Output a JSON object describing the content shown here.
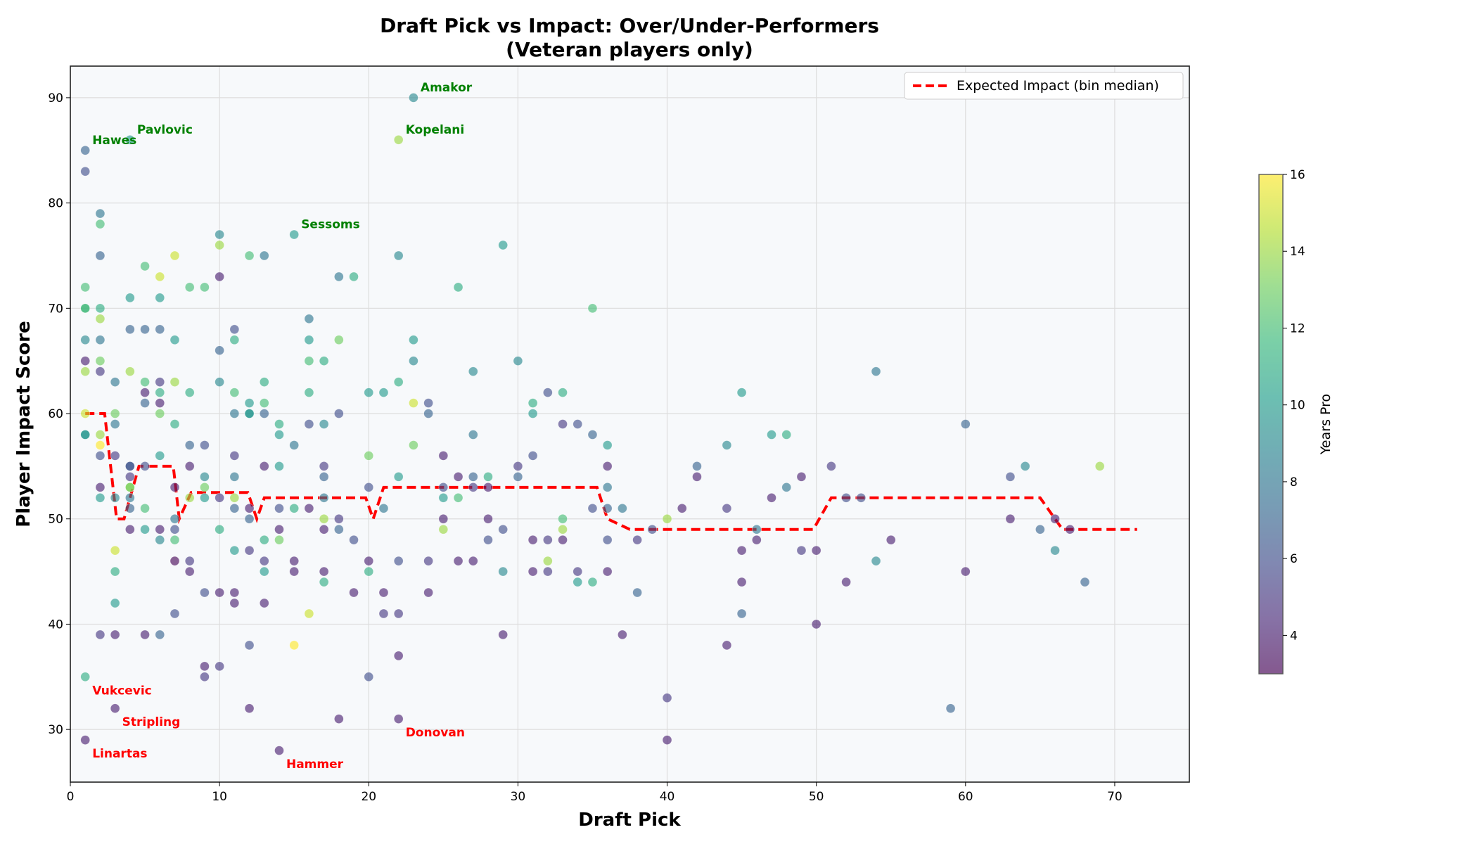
{
  "chart_data": {
    "type": "scatter",
    "title": "Draft Pick vs Impact: Over/Under-Performers",
    "subtitle": "(Veteran players only)",
    "xlabel": "Draft Pick",
    "ylabel": "Player Impact Score",
    "xlim": [
      0,
      75
    ],
    "ylim": [
      25,
      93
    ],
    "xticks": [
      0,
      10,
      20,
      30,
      40,
      50,
      60,
      70
    ],
    "yticks": [
      30,
      40,
      50,
      60,
      70,
      80,
      90
    ],
    "grid": true,
    "colorbar": {
      "label": "Years Pro",
      "range": [
        3,
        16
      ],
      "ticks": [
        4,
        6,
        8,
        10,
        12,
        14,
        16
      ],
      "colormap": "viridis"
    },
    "legend": {
      "placement": "top-right",
      "entries": [
        {
          "label": "Expected Impact (bin median)",
          "color": "#ff0000",
          "style": "dashed"
        }
      ]
    },
    "points": [
      [
        1,
        85,
        7
      ],
      [
        1,
        83,
        6
      ],
      [
        1,
        72,
        12
      ],
      [
        1,
        70,
        11
      ],
      [
        1,
        70,
        12
      ],
      [
        1,
        67,
        9
      ],
      [
        1,
        65,
        4
      ],
      [
        1,
        64,
        14
      ],
      [
        1,
        60,
        15
      ],
      [
        1,
        58,
        9
      ],
      [
        1,
        58,
        10
      ],
      [
        1,
        35,
        11
      ],
      [
        1,
        29,
        4
      ],
      [
        2,
        79,
        8
      ],
      [
        2,
        78,
        12
      ],
      [
        2,
        75,
        7
      ],
      [
        2,
        70,
        11
      ],
      [
        2,
        69,
        14
      ],
      [
        2,
        67,
        8
      ],
      [
        2,
        65,
        13
      ],
      [
        2,
        64,
        5
      ],
      [
        2,
        58,
        14
      ],
      [
        2,
        57,
        16
      ],
      [
        2,
        56,
        6
      ],
      [
        2,
        53,
        4
      ],
      [
        2,
        52,
        10
      ],
      [
        2,
        39,
        5
      ],
      [
        3,
        63,
        8
      ],
      [
        3,
        60,
        13
      ],
      [
        3,
        59,
        8
      ],
      [
        3,
        56,
        5
      ],
      [
        3,
        52,
        9
      ],
      [
        3,
        47,
        15
      ],
      [
        3,
        45,
        11
      ],
      [
        3,
        42,
        10
      ],
      [
        3,
        39,
        4
      ],
      [
        3,
        32,
        4
      ],
      [
        4,
        86,
        10
      ],
      [
        4,
        71,
        10
      ],
      [
        4,
        68,
        7
      ],
      [
        4,
        64,
        14
      ],
      [
        4,
        55,
        7
      ],
      [
        4,
        55,
        6
      ],
      [
        4,
        54,
        5
      ],
      [
        4,
        53,
        14
      ],
      [
        4,
        53,
        13
      ],
      [
        4,
        52,
        8
      ],
      [
        4,
        51,
        7
      ],
      [
        4,
        49,
        4
      ],
      [
        5,
        74,
        12
      ],
      [
        5,
        68,
        7
      ],
      [
        5,
        63,
        12
      ],
      [
        5,
        62,
        4
      ],
      [
        5,
        61,
        7
      ],
      [
        5,
        55,
        6
      ],
      [
        5,
        51,
        12
      ],
      [
        5,
        49,
        10
      ],
      [
        5,
        39,
        4
      ],
      [
        6,
        73,
        15
      ],
      [
        6,
        71,
        10
      ],
      [
        6,
        68,
        7
      ],
      [
        6,
        63,
        5
      ],
      [
        6,
        62,
        11
      ],
      [
        6,
        61,
        4
      ],
      [
        6,
        60,
        13
      ],
      [
        6,
        56,
        10
      ],
      [
        6,
        49,
        4
      ],
      [
        6,
        48,
        9
      ],
      [
        6,
        39,
        7
      ],
      [
        7,
        75,
        15
      ],
      [
        7,
        67,
        10
      ],
      [
        7,
        63,
        14
      ],
      [
        7,
        59,
        11
      ],
      [
        7,
        53,
        4
      ],
      [
        7,
        50,
        8
      ],
      [
        7,
        49,
        6
      ],
      [
        7,
        48,
        12
      ],
      [
        7,
        46,
        3
      ],
      [
        7,
        41,
        6
      ],
      [
        8,
        72,
        12
      ],
      [
        8,
        62,
        11
      ],
      [
        8,
        57,
        7
      ],
      [
        8,
        55,
        4
      ],
      [
        8,
        52,
        14
      ],
      [
        8,
        46,
        5
      ],
      [
        8,
        45,
        4
      ],
      [
        9,
        72,
        12
      ],
      [
        9,
        57,
        6
      ],
      [
        9,
        54,
        9
      ],
      [
        9,
        53,
        13
      ],
      [
        9,
        52,
        10
      ],
      [
        9,
        43,
        6
      ],
      [
        9,
        36,
        4
      ],
      [
        9,
        35,
        5
      ],
      [
        10,
        77,
        9
      ],
      [
        10,
        76,
        14
      ],
      [
        10,
        73,
        4
      ],
      [
        10,
        66,
        7
      ],
      [
        10,
        63,
        9
      ],
      [
        10,
        52,
        5
      ],
      [
        10,
        49,
        11
      ],
      [
        10,
        43,
        4
      ],
      [
        10,
        36,
        5
      ],
      [
        11,
        68,
        6
      ],
      [
        11,
        67,
        11
      ],
      [
        11,
        62,
        12
      ],
      [
        11,
        60,
        8
      ],
      [
        11,
        56,
        5
      ],
      [
        11,
        54,
        8
      ],
      [
        11,
        52,
        14
      ],
      [
        11,
        51,
        7
      ],
      [
        11,
        47,
        10
      ],
      [
        11,
        43,
        4
      ],
      [
        11,
        42,
        4
      ],
      [
        12,
        75,
        12
      ],
      [
        12,
        61,
        10
      ],
      [
        12,
        60,
        9
      ],
      [
        12,
        60,
        10
      ],
      [
        12,
        51,
        4
      ],
      [
        12,
        50,
        7
      ],
      [
        12,
        47,
        5
      ],
      [
        12,
        38,
        6
      ],
      [
        12,
        32,
        4
      ],
      [
        13,
        75,
        8
      ],
      [
        13,
        63,
        11
      ],
      [
        13,
        61,
        12
      ],
      [
        13,
        60,
        7
      ],
      [
        13,
        55,
        4
      ],
      [
        13,
        48,
        11
      ],
      [
        13,
        46,
        5
      ],
      [
        13,
        45,
        10
      ],
      [
        13,
        42,
        4
      ],
      [
        14,
        59,
        11
      ],
      [
        14,
        58,
        10
      ],
      [
        14,
        55,
        10
      ],
      [
        14,
        51,
        6
      ],
      [
        14,
        49,
        4
      ],
      [
        14,
        48,
        13
      ],
      [
        14,
        28,
        4
      ],
      [
        15,
        77,
        10
      ],
      [
        15,
        57,
        8
      ],
      [
        15,
        51,
        11
      ],
      [
        15,
        46,
        4
      ],
      [
        15,
        45,
        4
      ],
      [
        15,
        38,
        16
      ],
      [
        16,
        69,
        8
      ],
      [
        16,
        67,
        10
      ],
      [
        16,
        65,
        12
      ],
      [
        16,
        62,
        11
      ],
      [
        16,
        59,
        6
      ],
      [
        16,
        51,
        4
      ],
      [
        16,
        41,
        15
      ],
      [
        17,
        65,
        11
      ],
      [
        17,
        59,
        9
      ],
      [
        17,
        55,
        5
      ],
      [
        17,
        54,
        7
      ],
      [
        17,
        52,
        8
      ],
      [
        17,
        50,
        14
      ],
      [
        17,
        49,
        4
      ],
      [
        17,
        45,
        4
      ],
      [
        17,
        44,
        11
      ],
      [
        18,
        73,
        8
      ],
      [
        18,
        67,
        13
      ],
      [
        18,
        60,
        6
      ],
      [
        18,
        50,
        5
      ],
      [
        18,
        49,
        7
      ],
      [
        18,
        31,
        4
      ],
      [
        19,
        73,
        11
      ],
      [
        19,
        48,
        6
      ],
      [
        19,
        43,
        4
      ],
      [
        20,
        62,
        10
      ],
      [
        20,
        56,
        13
      ],
      [
        20,
        53,
        6
      ],
      [
        20,
        46,
        4
      ],
      [
        20,
        45,
        11
      ],
      [
        20,
        35,
        6
      ],
      [
        21,
        62,
        10
      ],
      [
        21,
        51,
        8
      ],
      [
        21,
        43,
        4
      ],
      [
        21,
        41,
        5
      ],
      [
        22,
        86,
        14
      ],
      [
        22,
        75,
        9
      ],
      [
        22,
        63,
        11
      ],
      [
        22,
        54,
        10
      ],
      [
        22,
        46,
        6
      ],
      [
        22,
        41,
        5
      ],
      [
        22,
        37,
        4
      ],
      [
        22,
        31,
        4
      ],
      [
        23,
        90,
        9
      ],
      [
        23,
        67,
        10
      ],
      [
        23,
        65,
        9
      ],
      [
        23,
        61,
        15
      ],
      [
        23,
        57,
        13
      ],
      [
        24,
        61,
        6
      ],
      [
        24,
        60,
        7
      ],
      [
        24,
        46,
        5
      ],
      [
        24,
        43,
        4
      ],
      [
        25,
        56,
        4
      ],
      [
        25,
        53,
        6
      ],
      [
        25,
        52,
        10
      ],
      [
        25,
        50,
        4
      ],
      [
        25,
        49,
        14
      ],
      [
        26,
        72,
        11
      ],
      [
        26,
        54,
        4
      ],
      [
        26,
        52,
        12
      ],
      [
        26,
        46,
        4
      ],
      [
        27,
        64,
        9
      ],
      [
        27,
        58,
        8
      ],
      [
        27,
        54,
        7
      ],
      [
        27,
        53,
        5
      ],
      [
        27,
        46,
        4
      ],
      [
        28,
        54,
        11
      ],
      [
        28,
        53,
        4
      ],
      [
        28,
        50,
        4
      ],
      [
        28,
        48,
        6
      ],
      [
        29,
        76,
        10
      ],
      [
        29,
        49,
        6
      ],
      [
        29,
        45,
        9
      ],
      [
        29,
        39,
        4
      ],
      [
        30,
        65,
        9
      ],
      [
        30,
        55,
        5
      ],
      [
        30,
        54,
        7
      ],
      [
        31,
        61,
        11
      ],
      [
        31,
        60,
        10
      ],
      [
        31,
        56,
        6
      ],
      [
        31,
        48,
        4
      ],
      [
        31,
        45,
        4
      ],
      [
        32,
        62,
        6
      ],
      [
        32,
        48,
        5
      ],
      [
        32,
        46,
        14
      ],
      [
        32,
        45,
        5
      ],
      [
        33,
        62,
        11
      ],
      [
        33,
        59,
        5
      ],
      [
        33,
        50,
        12
      ],
      [
        33,
        49,
        14
      ],
      [
        33,
        48,
        4
      ],
      [
        34,
        59,
        6
      ],
      [
        34,
        45,
        5
      ],
      [
        34,
        44,
        10
      ],
      [
        35,
        70,
        12
      ],
      [
        35,
        58,
        7
      ],
      [
        35,
        51,
        6
      ],
      [
        35,
        44,
        11
      ],
      [
        36,
        57,
        10
      ],
      [
        36,
        55,
        4
      ],
      [
        36,
        53,
        8
      ],
      [
        36,
        51,
        7
      ],
      [
        36,
        48,
        6
      ],
      [
        36,
        45,
        4
      ],
      [
        37,
        51,
        8
      ],
      [
        37,
        39,
        4
      ],
      [
        38,
        48,
        5
      ],
      [
        38,
        43,
        7
      ],
      [
        39,
        49,
        6
      ],
      [
        40,
        50,
        14
      ],
      [
        40,
        33,
        5
      ],
      [
        40,
        29,
        4
      ],
      [
        41,
        51,
        4
      ],
      [
        42,
        55,
        7
      ],
      [
        42,
        54,
        4
      ],
      [
        44,
        57,
        9
      ],
      [
        44,
        51,
        5
      ],
      [
        44,
        38,
        4
      ],
      [
        45,
        62,
        10
      ],
      [
        45,
        47,
        4
      ],
      [
        45,
        44,
        4
      ],
      [
        45,
        41,
        7
      ],
      [
        46,
        49,
        8
      ],
      [
        46,
        48,
        4
      ],
      [
        47,
        58,
        10
      ],
      [
        47,
        52,
        4
      ],
      [
        48,
        58,
        11
      ],
      [
        48,
        53,
        8
      ],
      [
        49,
        54,
        4
      ],
      [
        49,
        47,
        5
      ],
      [
        50,
        47,
        4
      ],
      [
        50,
        40,
        4
      ],
      [
        51,
        55,
        5
      ],
      [
        52,
        52,
        6
      ],
      [
        52,
        44,
        4
      ],
      [
        53,
        52,
        6
      ],
      [
        54,
        64,
        8
      ],
      [
        54,
        46,
        9
      ],
      [
        55,
        48,
        4
      ],
      [
        59,
        32,
        7
      ],
      [
        60,
        59,
        7
      ],
      [
        60,
        45,
        4
      ],
      [
        63,
        54,
        6
      ],
      [
        63,
        50,
        4
      ],
      [
        64,
        55,
        9
      ],
      [
        65,
        49,
        7
      ],
      [
        66,
        50,
        4
      ],
      [
        66,
        47,
        9
      ],
      [
        67,
        49,
        4
      ],
      [
        68,
        44,
        7
      ],
      [
        69,
        55,
        14
      ]
    ],
    "expected_line": [
      [
        1,
        60
      ],
      [
        2.3,
        60
      ],
      [
        3.1,
        50
      ],
      [
        3.6,
        50
      ],
      [
        4.6,
        55
      ],
      [
        6.9,
        55
      ],
      [
        7.3,
        50
      ],
      [
        8.1,
        52.5
      ],
      [
        11.9,
        52.5
      ],
      [
        12.5,
        50
      ],
      [
        13,
        52
      ],
      [
        19.8,
        52
      ],
      [
        20.3,
        50
      ],
      [
        21,
        53
      ],
      [
        35.3,
        53
      ],
      [
        36,
        50
      ],
      [
        37.5,
        49
      ],
      [
        49.8,
        49
      ],
      [
        51,
        52
      ],
      [
        65,
        52
      ],
      [
        66.5,
        49
      ],
      [
        71.5,
        49
      ]
    ],
    "annotations": [
      {
        "label": "Hawes",
        "pick": 1,
        "score": 85,
        "kind": "over",
        "color": "#008000"
      },
      {
        "label": "Pavlovic",
        "pick": 4,
        "score": 86,
        "kind": "over",
        "color": "#008000"
      },
      {
        "label": "Sessoms",
        "pick": 15,
        "score": 77,
        "kind": "over",
        "color": "#008000"
      },
      {
        "label": "Kopelani",
        "pick": 22,
        "score": 86,
        "kind": "over",
        "color": "#008000"
      },
      {
        "label": "Amakor",
        "pick": 23,
        "score": 90,
        "kind": "over",
        "color": "#008000"
      },
      {
        "label": "Vukcevic",
        "pick": 1,
        "score": 35,
        "kind": "under",
        "color": "#ff0000"
      },
      {
        "label": "Stripling",
        "pick": 3,
        "score": 32,
        "kind": "under",
        "color": "#ff0000"
      },
      {
        "label": "Linartas",
        "pick": 1,
        "score": 29,
        "kind": "under",
        "color": "#ff0000"
      },
      {
        "label": "Hammer",
        "pick": 14,
        "score": 28,
        "kind": "under",
        "color": "#ff0000"
      },
      {
        "label": "Donovan",
        "pick": 22,
        "score": 31,
        "kind": "under",
        "color": "#ff0000"
      }
    ]
  }
}
